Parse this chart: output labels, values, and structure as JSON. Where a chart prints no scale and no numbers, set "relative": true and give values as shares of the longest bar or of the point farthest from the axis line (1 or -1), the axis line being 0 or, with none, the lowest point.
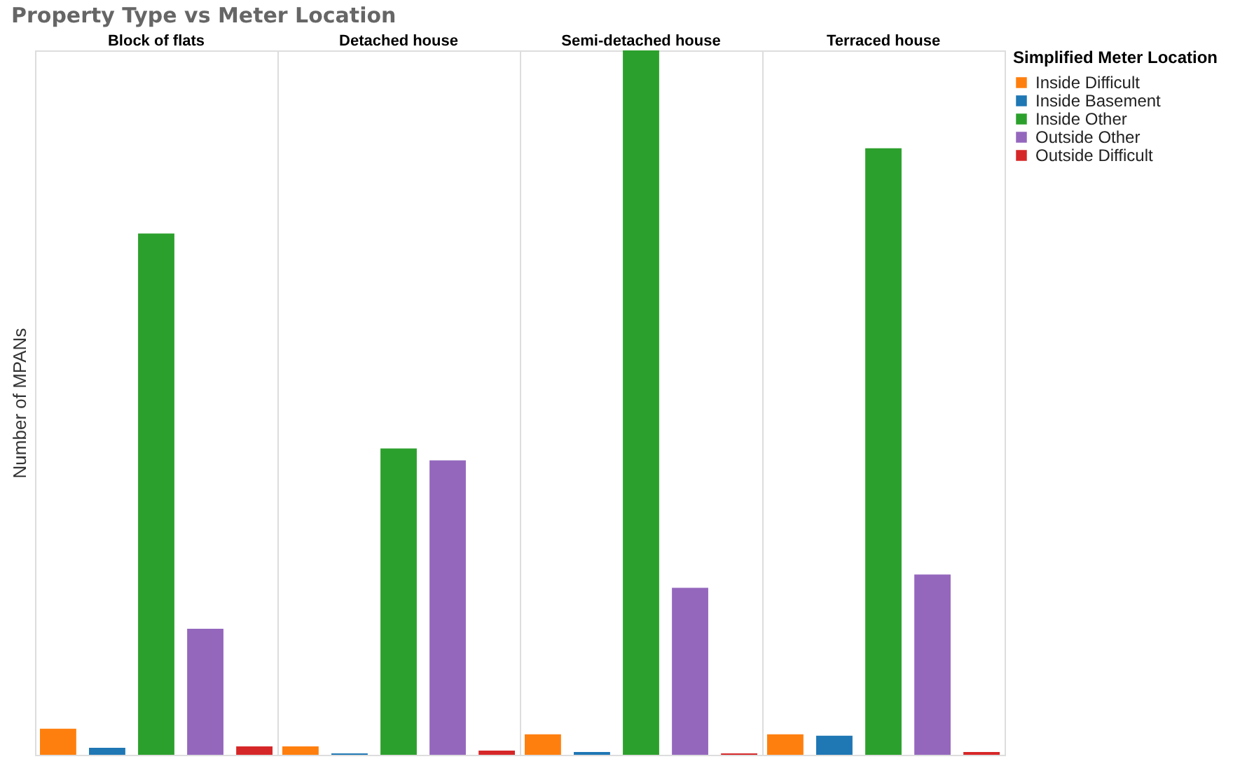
{
  "chart_data": {
    "type": "bar",
    "title": "Property Type vs Meter Location",
    "ylabel": "Number of MPANs",
    "legend_title": "Simplified Meter Location",
    "legend": "top right",
    "relative": true,
    "categories": [
      "Block of flats",
      "Detached house",
      "Semi-detached house",
      "Terraced house"
    ],
    "series": [
      {
        "name": "Inside Difficult",
        "color": "#ff7f0e",
        "values": [
          0.037,
          0.012,
          0.029,
          0.029
        ]
      },
      {
        "name": "Inside Basement",
        "color": "#1f77b4",
        "values": [
          0.01,
          0.002,
          0.004,
          0.027
        ]
      },
      {
        "name": "Inside Other",
        "color": "#2ca02c",
        "values": [
          0.74,
          0.435,
          1,
          0.861
        ]
      },
      {
        "name": "Outside Other",
        "color": "#9467bd",
        "values": [
          0.179,
          0.418,
          0.237,
          0.256
        ]
      },
      {
        "name": "Outside Difficult",
        "color": "#d62728",
        "values": [
          0.012,
          0.006,
          0.002,
          0.004
        ]
      }
    ]
  }
}
